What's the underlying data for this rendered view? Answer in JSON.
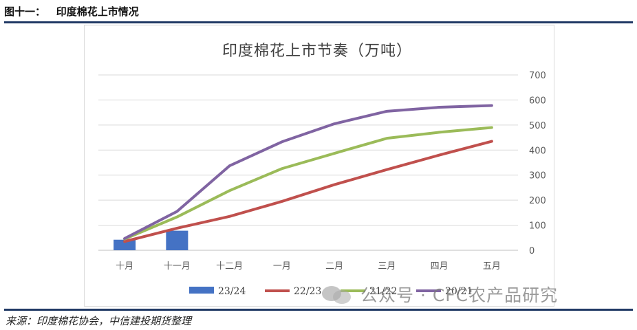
{
  "figure": {
    "label": "图十一：",
    "title": "印度棉花上市情况",
    "source": "来源：印度棉花协会，中信建投期货整理"
  },
  "watermark": {
    "text": "公众号 · CFC农产品研究",
    "icon": "wechat-icon"
  },
  "chart_data": {
    "type": "line",
    "title": "印度棉花上市节奏（万吨）",
    "xlabel": "",
    "ylabel": "",
    "categories": [
      "十月",
      "十一月",
      "十二月",
      "一月",
      "二月",
      "三月",
      "四月",
      "五月"
    ],
    "yticks": [
      "700",
      "600",
      "500",
      "400",
      "300",
      "200",
      "100",
      "0"
    ],
    "ylim": [
      0,
      700
    ],
    "grid": true,
    "legend_position": "bottom",
    "series": [
      {
        "name": "23/24",
        "type": "bar",
        "color": "#4472c4",
        "values": [
          42,
          78,
          null,
          null,
          null,
          null,
          null,
          null
        ]
      },
      {
        "name": "22/23",
        "type": "line",
        "color": "#c0504d",
        "values": [
          35,
          88,
          135,
          195,
          262,
          322,
          380,
          435
        ]
      },
      {
        "name": "21/22",
        "type": "line",
        "color": "#9bbb59",
        "values": [
          45,
          133,
          238,
          326,
          387,
          447,
          471,
          490
        ]
      },
      {
        "name": "20/21",
        "type": "line",
        "color": "#8064a2",
        "values": [
          47,
          155,
          337,
          433,
          505,
          555,
          571,
          578
        ]
      }
    ]
  }
}
